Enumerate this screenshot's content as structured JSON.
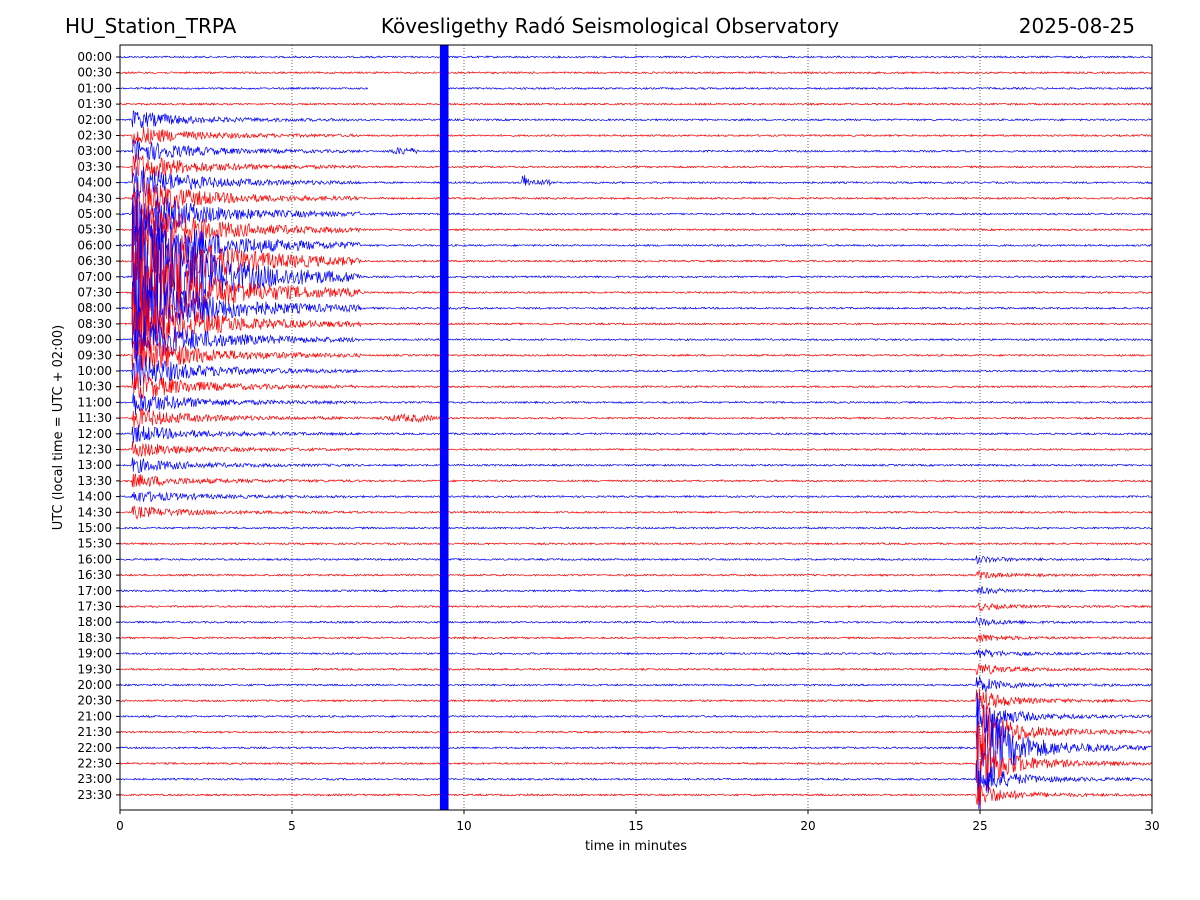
{
  "header": {
    "station": "HU_Station_TRPA",
    "title": "Kövesligethy Radó Seismological Observatory",
    "date": "2025-08-25"
  },
  "colors": {
    "trace_a": "#0000ff",
    "trace_b": "#ff0000",
    "grid": "#000000"
  },
  "chart_data": {
    "type": "line",
    "xlabel": "time in minutes",
    "ylabel": "UTC (local time = UTC + 02:00)",
    "xlim": [
      0,
      30
    ],
    "x_ticks": [
      0,
      5,
      10,
      15,
      20,
      25,
      30
    ],
    "grid": "vertical dotted at x ticks",
    "row_labels": [
      "00:00",
      "00:30",
      "01:00",
      "01:30",
      "02:00",
      "02:30",
      "03:00",
      "03:30",
      "04:00",
      "04:30",
      "05:00",
      "05:30",
      "06:00",
      "06:30",
      "07:00",
      "07:30",
      "08:00",
      "08:30",
      "09:00",
      "09:30",
      "10:00",
      "10:30",
      "11:00",
      "11:30",
      "12:00",
      "12:30",
      "13:00",
      "13:30",
      "14:00",
      "14:30",
      "15:00",
      "15:30",
      "16:00",
      "16:30",
      "17:00",
      "17:30",
      "18:00",
      "18:30",
      "19:00",
      "19:30",
      "20:00",
      "20:30",
      "21:00",
      "21:30",
      "22:00",
      "22:30",
      "23:00",
      "23:30"
    ],
    "row_colors": "alternating blue / red starting with blue",
    "gap": {
      "row": "01:00",
      "x_start": 7.2,
      "x_end": 9.4
    },
    "data_spike": {
      "x_start": 9.3,
      "x_end": 9.55,
      "rows": "all"
    },
    "events": [
      {
        "name": "large-quake",
        "x_start": 0.35,
        "x_end": 7.0,
        "peak_row": "07:00",
        "rows_span": [
          "02:00",
          "14:30"
        ],
        "peak_x": 0.4
      },
      {
        "name": "local-event-2200",
        "x_start": 24.9,
        "x_end": 30.0,
        "peak_row": "22:00",
        "rows_span": [
          "16:00",
          "23:30"
        ],
        "peak_x": 24.95
      },
      {
        "name": "small-event-0400",
        "x_start": 11.7,
        "x_end": 12.5,
        "row": "04:00"
      },
      {
        "name": "noise-burst-0300",
        "x_start": 7.8,
        "x_end": 8.7,
        "row": "03:00"
      },
      {
        "name": "noise-burst-1130",
        "x_start": 7.5,
        "x_end": 9.3,
        "row": "11:30"
      }
    ]
  }
}
